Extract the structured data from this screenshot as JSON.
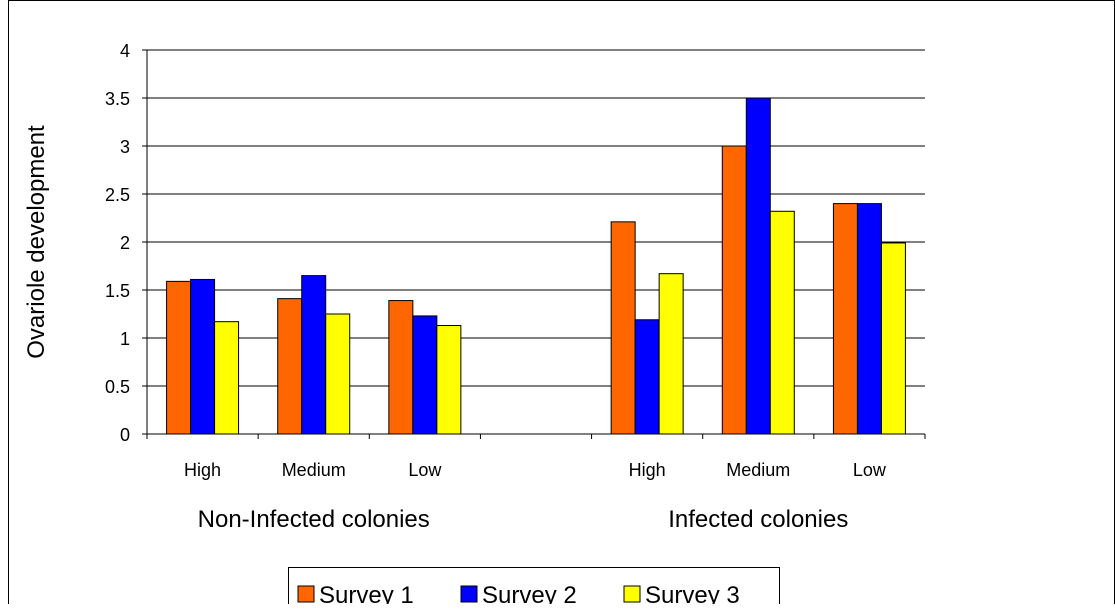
{
  "chart_data": {
    "type": "bar",
    "title": "",
    "ylabel": "Ovariole development",
    "xlabel": "",
    "ylim": [
      0,
      4
    ],
    "yticks": [
      0,
      0.5,
      1,
      1.5,
      2,
      2.5,
      3,
      3.5,
      4
    ],
    "ytick_labels": [
      "0",
      "0.5",
      "1",
      "1.5",
      "2",
      "2.5",
      "3",
      "3.5",
      "4"
    ],
    "grid": true,
    "legend_position": "bottom",
    "groups": [
      {
        "label": "Non-Infected colonies",
        "categories": [
          "High",
          "Medium",
          "Low"
        ]
      },
      {
        "label": "Infected colonies",
        "categories": [
          "High",
          "Medium",
          "Low"
        ]
      }
    ],
    "categories": [
      "High",
      "Medium",
      "Low",
      "",
      "High",
      "Medium",
      "Low"
    ],
    "series": [
      {
        "name": "Survey 1",
        "color": "#FF6600",
        "values": [
          1.59,
          1.41,
          1.39,
          null,
          2.21,
          3.0,
          2.4
        ]
      },
      {
        "name": "Survey 2",
        "color": "#0000FF",
        "values": [
          1.61,
          1.65,
          1.23,
          null,
          1.19,
          3.5,
          2.4
        ]
      },
      {
        "name": "Survey 3",
        "color": "#FFFF00",
        "values": [
          1.17,
          1.25,
          1.13,
          null,
          1.67,
          2.32,
          1.99
        ]
      }
    ]
  }
}
